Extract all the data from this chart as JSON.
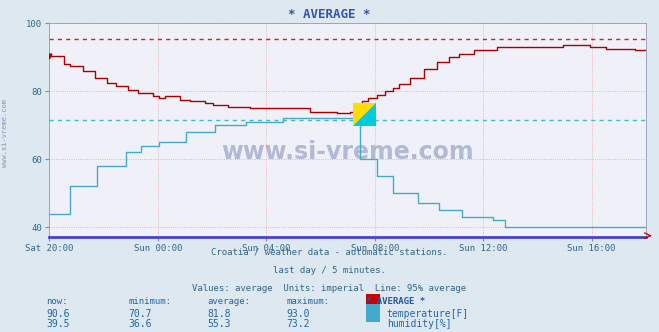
{
  "title": "* AVERAGE *",
  "background_color": "#dde8f0",
  "plot_bg_color": "#f0f0f8",
  "xlabel_ticks": [
    "Sat 20:00",
    "Sun 00:00",
    "Sun 04:00",
    "Sun 08:00",
    "Sun 12:00",
    "Sun 16:00"
  ],
  "ylim": [
    37,
    100
  ],
  "yticks": [
    40,
    60,
    80,
    100
  ],
  "grid_color": "#e8a0a0",
  "temp_color": "#aa0000",
  "hum_color": "#44aacc",
  "hline_temp_color": "#cc2222",
  "hline_hum_color": "#44bbcc",
  "hline_temp_val": 95.5,
  "hline_hum_val": 71.5,
  "footer_line1": "Croatia / weather data - automatic stations.",
  "footer_line2": "last day / 5 minutes.",
  "footer_line3": "Values: average  Units: imperial  Line: 95% average",
  "watermark": "www.si-vreme.com",
  "side_label": "www.si-vreme.com",
  "table_headers": [
    "now:",
    "minimum:",
    "average:",
    "maximum:",
    "* AVERAGE *"
  ],
  "table_row1": [
    "90.6",
    "70.7",
    "81.8",
    "93.0"
  ],
  "table_row2": [
    "39.5",
    "36.6",
    "55.3",
    "73.2"
  ],
  "table_label1": "temperature[F]",
  "table_label2": "humidity[%]",
  "temp_rect_color": "#cc0000",
  "hum_rect_color": "#44aacc",
  "num_points": 289
}
